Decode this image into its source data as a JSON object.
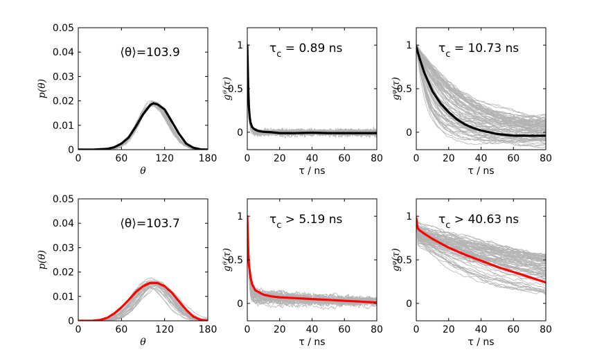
{
  "figure": {
    "background": "#ffffff",
    "colors": {
      "gray": "#b3b3b3",
      "black": "#000000",
      "red": "#ff0000"
    }
  },
  "chart_data": [
    {
      "id": "p1",
      "type": "line",
      "row": 0,
      "col": 0,
      "title": "",
      "annotation": "⟨θ⟩=103.9",
      "xlabel": "θ",
      "ylabel": "p(θ)",
      "xlim": [
        0,
        180
      ],
      "ylim": [
        0,
        0.05
      ],
      "xticks": [
        0,
        60,
        120,
        180
      ],
      "xtick_labels": [
        "0",
        "60",
        "120",
        "180"
      ],
      "yticks": [
        0,
        0.01,
        0.02,
        0.03,
        0.04,
        0.05
      ],
      "ytick_labels": [
        "0",
        "0.01",
        "0.02",
        "0.03",
        "0.04",
        "0.05"
      ],
      "gray_count": 24,
      "series": [
        {
          "name": "mean",
          "color": "#000000",
          "x": [
            0,
            20,
            40,
            50,
            60,
            70,
            80,
            90,
            100,
            104,
            110,
            120,
            130,
            140,
            150,
            160,
            170,
            180
          ],
          "y": [
            0,
            0,
            0.0003,
            0.001,
            0.0025,
            0.005,
            0.0095,
            0.0145,
            0.0183,
            0.019,
            0.0186,
            0.0165,
            0.0115,
            0.0065,
            0.0025,
            0.0008,
            0.0001,
            0
          ]
        }
      ]
    },
    {
      "id": "p2",
      "type": "line",
      "row": 0,
      "col": 1,
      "annotation_main": "τ",
      "annotation_sub": "c",
      "annotation_rest": " = 0.89 ns",
      "xlabel": "τ / ns",
      "ylabel": "gᶿ(τ)",
      "xlim": [
        0,
        80
      ],
      "ylim": [
        -0.2,
        1.2
      ],
      "xticks": [
        0,
        20,
        40,
        60,
        80
      ],
      "xtick_labels": [
        "0",
        "20",
        "40",
        "60",
        "80"
      ],
      "yticks": [
        0,
        0.5,
        1
      ],
      "ytick_labels": [
        "0",
        "0.5",
        "1"
      ],
      "gray_count": 30,
      "series": [
        {
          "name": "mean",
          "color": "#000000",
          "x": [
            0,
            0.3,
            0.6,
            1,
            1.5,
            2,
            3,
            4,
            6,
            8,
            10,
            15,
            20,
            30,
            40,
            50,
            60,
            70,
            80
          ],
          "y": [
            1,
            0.75,
            0.5,
            0.3,
            0.17,
            0.11,
            0.06,
            0.04,
            0.02,
            0.01,
            0.005,
            0.0,
            -0.01,
            -0.01,
            -0.005,
            -0.01,
            -0.01,
            -0.01,
            -0.01
          ]
        }
      ]
    },
    {
      "id": "p3",
      "type": "line",
      "row": 0,
      "col": 2,
      "annotation_main": "τ",
      "annotation_sub": "c",
      "annotation_rest": " = 10.73 ns",
      "xlabel": "τ / ns",
      "ylabel": "gᵠ(τ)",
      "xlim": [
        0,
        80
      ],
      "ylim": [
        -0.2,
        1.2
      ],
      "xticks": [
        0,
        20,
        40,
        60,
        80
      ],
      "xtick_labels": [
        "0",
        "20",
        "40",
        "60",
        "80"
      ],
      "yticks": [
        0,
        0.5,
        1
      ],
      "ytick_labels": [
        "0",
        "0.5",
        "1"
      ],
      "gray_count": 80,
      "series": [
        {
          "name": "mean",
          "color": "#000000",
          "x": [
            0,
            2,
            5,
            10,
            15,
            20,
            25,
            30,
            35,
            40,
            45,
            50,
            55,
            60,
            70,
            80
          ],
          "y": [
            0.98,
            0.85,
            0.68,
            0.47,
            0.33,
            0.23,
            0.15,
            0.09,
            0.05,
            0.02,
            0.0,
            -0.02,
            -0.03,
            -0.04,
            -0.04,
            -0.04
          ]
        }
      ]
    },
    {
      "id": "p4",
      "type": "line",
      "row": 1,
      "col": 0,
      "annotation": "⟨θ⟩=103.7",
      "xlabel": "θ",
      "ylabel": "p(θ)",
      "xlim": [
        0,
        180
      ],
      "ylim": [
        0,
        0.05
      ],
      "xticks": [
        0,
        60,
        120,
        180
      ],
      "xtick_labels": [
        "0",
        "60",
        "120",
        "180"
      ],
      "yticks": [
        0,
        0.01,
        0.02,
        0.03,
        0.04,
        0.05
      ],
      "ytick_labels": [
        "0",
        "0.01",
        "0.02",
        "0.03",
        "0.04",
        "0.05"
      ],
      "gray_count": 30,
      "series": [
        {
          "name": "mean",
          "color": "#ff0000",
          "x": [
            0,
            20,
            30,
            40,
            50,
            60,
            70,
            80,
            90,
            100,
            110,
            120,
            130,
            140,
            150,
            160,
            170,
            180
          ],
          "y": [
            0,
            0,
            0.0003,
            0.0012,
            0.003,
            0.0055,
            0.0085,
            0.0118,
            0.0142,
            0.0155,
            0.0155,
            0.0142,
            0.0115,
            0.008,
            0.0045,
            0.0017,
            0.0004,
            0
          ]
        }
      ]
    },
    {
      "id": "p5",
      "type": "line",
      "row": 1,
      "col": 1,
      "annotation_main": "τ",
      "annotation_sub": "c",
      "annotation_rest": " > 5.19 ns",
      "xlabel": "τ / ns",
      "ylabel": "gᶿ(τ)",
      "xlim": [
        0,
        80
      ],
      "ylim": [
        -0.2,
        1.2
      ],
      "xticks": [
        0,
        20,
        40,
        60,
        80
      ],
      "xtick_labels": [
        "0",
        "20",
        "40",
        "60",
        "80"
      ],
      "yticks": [
        0,
        0.5,
        1
      ],
      "ytick_labels": [
        "0",
        "0.5",
        "1"
      ],
      "gray_count": 40,
      "series": [
        {
          "name": "mean",
          "color": "#ff0000",
          "x": [
            0,
            0.3,
            0.6,
            1,
            2,
            3,
            5,
            8,
            10,
            15,
            20,
            30,
            40,
            50,
            60,
            70,
            80
          ],
          "y": [
            1,
            0.8,
            0.6,
            0.45,
            0.3,
            0.22,
            0.15,
            0.12,
            0.1,
            0.08,
            0.07,
            0.06,
            0.05,
            0.04,
            0.03,
            0.02,
            0.01
          ]
        }
      ]
    },
    {
      "id": "p6",
      "type": "line",
      "row": 1,
      "col": 2,
      "annotation_main": "τ",
      "annotation_sub": "c",
      "annotation_rest": " > 40.63 ns",
      "xlabel": "τ / ns",
      "ylabel": "gᵠ(τ)",
      "xlim": [
        0,
        80
      ],
      "ylim": [
        -0.2,
        1.2
      ],
      "xticks": [
        0,
        20,
        40,
        60,
        80
      ],
      "xtick_labels": [
        "0",
        "20",
        "40",
        "60",
        "80"
      ],
      "yticks": [
        0,
        0.5,
        1
      ],
      "ytick_labels": [
        "0",
        "0.5",
        "1"
      ],
      "gray_count": 80,
      "series": [
        {
          "name": "mean",
          "color": "#ff0000",
          "x": [
            0,
            0.5,
            1,
            2,
            5,
            10,
            20,
            30,
            40,
            50,
            60,
            70,
            80
          ],
          "y": [
            0.98,
            0.9,
            0.86,
            0.84,
            0.8,
            0.74,
            0.64,
            0.56,
            0.49,
            0.42,
            0.36,
            0.3,
            0.24
          ]
        }
      ]
    }
  ]
}
